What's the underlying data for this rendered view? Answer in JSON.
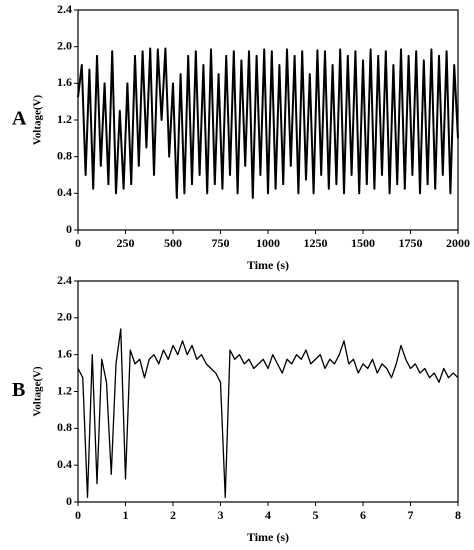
{
  "chart_data": [
    {
      "type": "line",
      "panel_label": "A",
      "xlabel": "Time (s)",
      "ylabel": "Voltage(V)",
      "xlim": [
        0,
        2000
      ],
      "xticks": [
        0,
        250,
        500,
        750,
        1000,
        1250,
        1500,
        1750,
        2000
      ],
      "ylim": [
        0,
        2.4
      ],
      "yticks": [
        0,
        0.4,
        0.8,
        1.2,
        1.6,
        {
          "value": 2,
          "label": "2.0"
        },
        2.4
      ],
      "color": "#000000",
      "x": [
        0,
        20,
        40,
        60,
        80,
        100,
        120,
        140,
        160,
        180,
        200,
        220,
        240,
        260,
        280,
        300,
        320,
        340,
        360,
        380,
        400,
        420,
        440,
        460,
        480,
        500,
        520,
        540,
        560,
        580,
        600,
        620,
        640,
        660,
        680,
        700,
        720,
        740,
        760,
        780,
        800,
        820,
        840,
        860,
        880,
        900,
        920,
        940,
        960,
        980,
        1000,
        1020,
        1040,
        1060,
        1080,
        1100,
        1120,
        1140,
        1160,
        1180,
        1200,
        1220,
        1240,
        1260,
        1280,
        1300,
        1320,
        1340,
        1360,
        1380,
        1400,
        1420,
        1440,
        1460,
        1480,
        1500,
        1520,
        1540,
        1560,
        1580,
        1600,
        1620,
        1640,
        1660,
        1680,
        1700,
        1720,
        1740,
        1760,
        1780,
        1800,
        1820,
        1840,
        1860,
        1880,
        1900,
        1920,
        1940,
        1960,
        1980,
        2000
      ],
      "values": [
        1.45,
        1.8,
        0.6,
        1.75,
        0.45,
        1.9,
        0.7,
        1.6,
        0.5,
        1.95,
        0.4,
        1.3,
        0.45,
        1.6,
        0.5,
        1.9,
        0.7,
        1.95,
        0.9,
        1.98,
        0.6,
        1.97,
        1.2,
        1.98,
        0.8,
        1.6,
        0.35,
        1.7,
        0.4,
        1.9,
        0.5,
        1.95,
        0.6,
        1.8,
        0.4,
        1.97,
        0.5,
        1.7,
        0.45,
        1.9,
        0.6,
        1.95,
        0.4,
        1.85,
        0.7,
        1.95,
        0.35,
        1.9,
        0.6,
        1.97,
        0.4,
        1.95,
        0.45,
        1.8,
        0.5,
        1.97,
        0.7,
        1.9,
        0.4,
        1.95,
        0.55,
        1.7,
        0.4,
        1.96,
        0.6,
        1.95,
        0.45,
        1.8,
        0.5,
        1.97,
        0.4,
        1.9,
        0.6,
        1.95,
        0.4,
        1.85,
        0.5,
        1.97,
        0.45,
        1.9,
        0.6,
        1.95,
        0.4,
        1.8,
        0.5,
        1.97,
        0.45,
        1.9,
        0.6,
        1.95,
        0.4,
        1.85,
        0.5,
        1.97,
        0.45,
        1.9,
        0.6,
        1.95,
        0.4,
        1.8,
        1.0
      ]
    },
    {
      "type": "line",
      "panel_label": "B",
      "xlabel": "Time (s)",
      "ylabel": "Voltage(V)",
      "xlim": [
        0,
        8
      ],
      "xticks": [
        0,
        1,
        2,
        3,
        4,
        5,
        6,
        7,
        8
      ],
      "ylim": [
        0,
        2.4
      ],
      "yticks": [
        0,
        0.4,
        0.8,
        1.2,
        1.6,
        {
          "value": 2,
          "label": "2.0"
        },
        2.4
      ],
      "color": "#000000",
      "x": [
        0,
        0.1,
        0.2,
        0.3,
        0.4,
        0.5,
        0.6,
        0.7,
        0.8,
        0.9,
        1.0,
        1.1,
        1.2,
        1.3,
        1.4,
        1.5,
        1.6,
        1.7,
        1.8,
        1.9,
        2.0,
        2.1,
        2.2,
        2.3,
        2.4,
        2.5,
        2.6,
        2.7,
        2.8,
        2.9,
        3.0,
        3.1,
        3.2,
        3.3,
        3.4,
        3.5,
        3.6,
        3.7,
        3.8,
        3.9,
        4.0,
        4.1,
        4.2,
        4.3,
        4.4,
        4.5,
        4.6,
        4.7,
        4.8,
        4.9,
        5.0,
        5.1,
        5.2,
        5.3,
        5.4,
        5.5,
        5.6,
        5.7,
        5.8,
        5.9,
        6.0,
        6.1,
        6.2,
        6.3,
        6.4,
        6.5,
        6.6,
        6.7,
        6.8,
        6.9,
        7.0,
        7.1,
        7.2,
        7.3,
        7.4,
        7.5,
        7.6,
        7.7,
        7.8,
        7.9,
        8.0
      ],
      "values": [
        1.45,
        1.35,
        0.05,
        1.6,
        0.2,
        1.55,
        1.3,
        0.3,
        1.5,
        1.88,
        0.25,
        1.65,
        1.5,
        1.55,
        1.35,
        1.55,
        1.6,
        1.5,
        1.65,
        1.55,
        1.7,
        1.6,
        1.75,
        1.6,
        1.7,
        1.55,
        1.6,
        1.5,
        1.45,
        1.4,
        1.3,
        0.05,
        1.65,
        1.55,
        1.6,
        1.5,
        1.55,
        1.45,
        1.5,
        1.55,
        1.45,
        1.6,
        1.5,
        1.4,
        1.55,
        1.5,
        1.6,
        1.55,
        1.65,
        1.5,
        1.55,
        1.6,
        1.45,
        1.55,
        1.5,
        1.6,
        1.75,
        1.5,
        1.55,
        1.4,
        1.5,
        1.45,
        1.55,
        1.4,
        1.5,
        1.45,
        1.35,
        1.5,
        1.7,
        1.55,
        1.45,
        1.5,
        1.4,
        1.45,
        1.35,
        1.4,
        1.3,
        1.45,
        1.35,
        1.4,
        1.35
      ]
    }
  ]
}
